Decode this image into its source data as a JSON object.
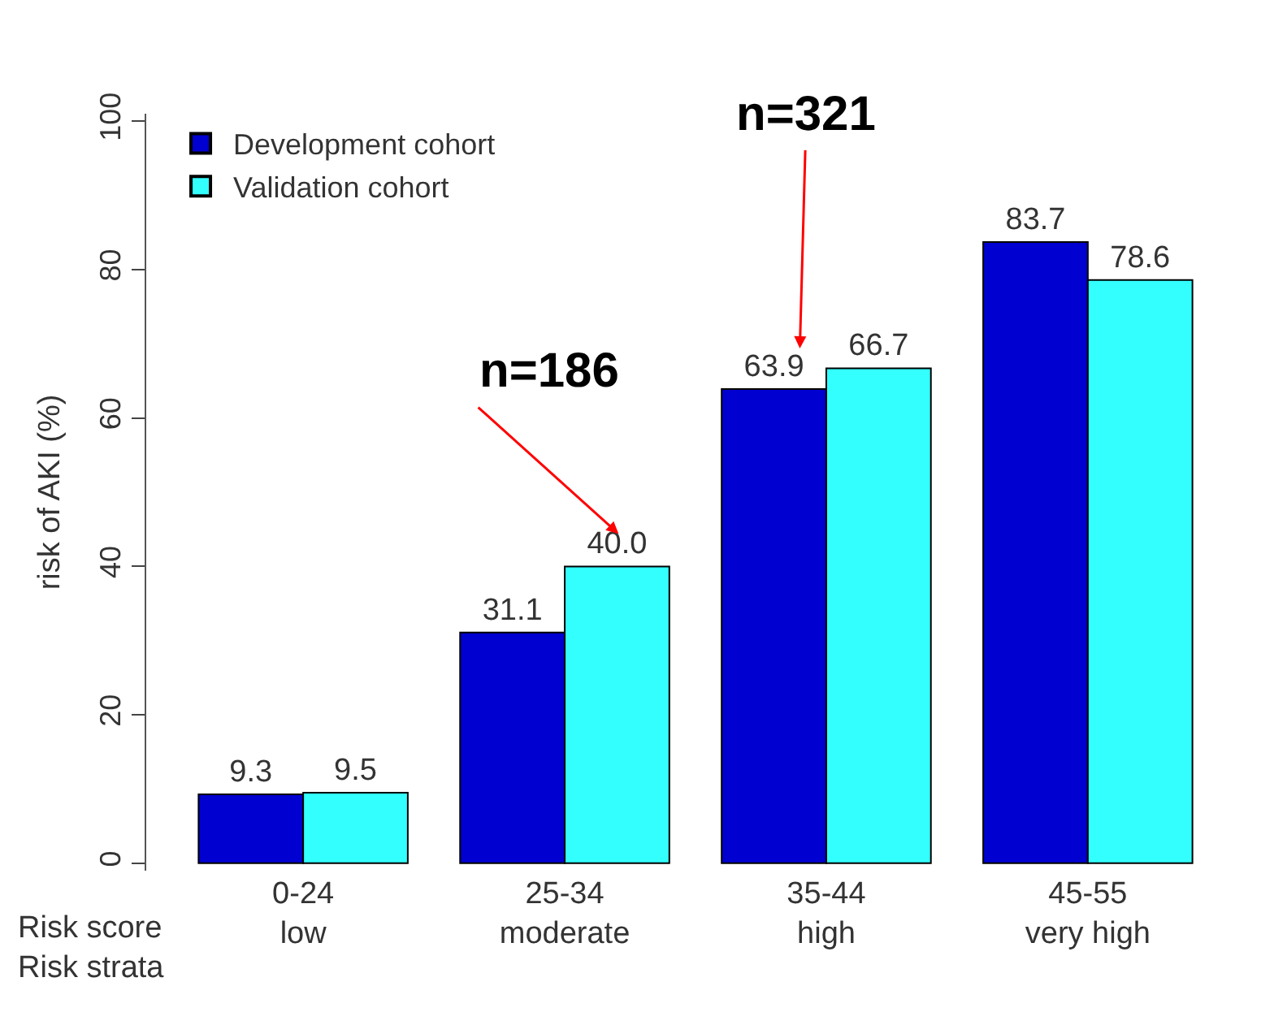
{
  "chart_data": {
    "type": "bar",
    "ylabel": "risk of AKI (%)",
    "categories": [
      "0-24\nlow",
      "25-34\nmoderate",
      "35-44\nhigh",
      "45-55\nvery high"
    ],
    "series": [
      {
        "name": "Development cohort",
        "color": "#0000d0",
        "values": [
          9.3,
          31.1,
          63.9,
          83.7
        ],
        "value_labels": [
          "9.3",
          "31.1",
          "63.9",
          "83.7"
        ]
      },
      {
        "name": "Validation cohort",
        "color": "#33ffff",
        "values": [
          9.5,
          40.0,
          66.7,
          78.6
        ],
        "value_labels": [
          "9.5",
          "40.0",
          "66.7",
          "78.6"
        ]
      }
    ],
    "ylim": [
      -1,
      101
    ],
    "yticks": [
      0,
      20,
      40,
      60,
      80,
      100
    ],
    "legend": "top left",
    "annotations": [
      "Risk score\nRisk strata",
      "n=186",
      "n=321"
    ]
  }
}
